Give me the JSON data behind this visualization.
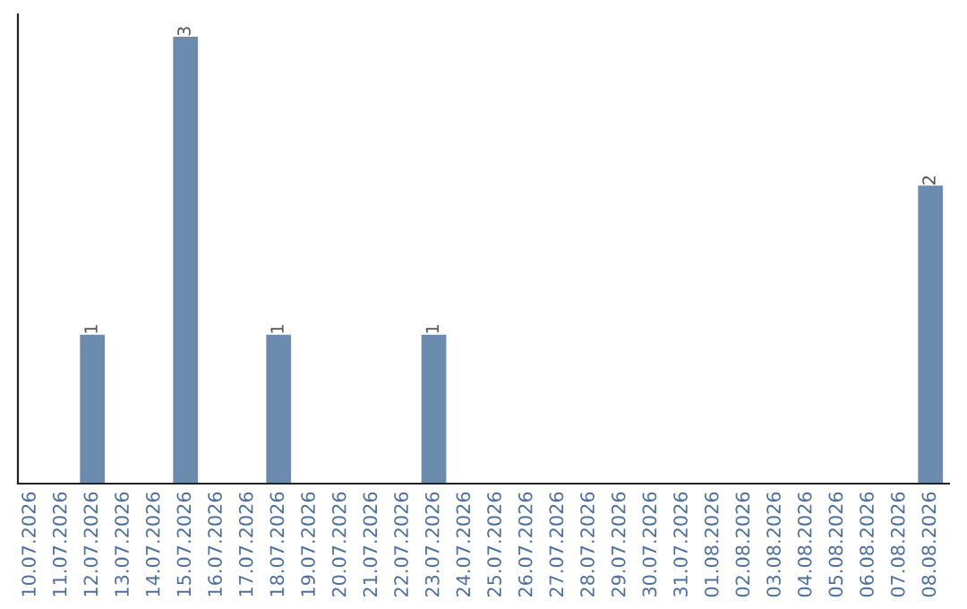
{
  "chart_data": {
    "type": "bar",
    "categories": [
      "10.07.2026",
      "11.07.2026",
      "12.07.2026",
      "13.07.2026",
      "14.07.2026",
      "15.07.2026",
      "16.07.2026",
      "17.07.2026",
      "18.07.2026",
      "19.07.2026",
      "20.07.2026",
      "21.07.2026",
      "22.07.2026",
      "23.07.2026",
      "24.07.2026",
      "25.07.2026",
      "26.07.2026",
      "27.07.2026",
      "28.07.2026",
      "29.07.2026",
      "30.07.2026",
      "31.07.2026",
      "01.08.2026",
      "02.08.2026",
      "03.08.2026",
      "04.08.2026",
      "05.08.2026",
      "06.08.2026",
      "07.08.2026",
      "08.08.2026"
    ],
    "values": [
      0,
      0,
      1,
      0,
      0,
      3,
      0,
      0,
      1,
      0,
      0,
      0,
      0,
      1,
      0,
      0,
      0,
      0,
      0,
      0,
      0,
      0,
      0,
      0,
      0,
      0,
      0,
      0,
      0,
      2
    ],
    "value_labels": [
      null,
      null,
      "1",
      null,
      null,
      "3",
      null,
      null,
      "1",
      null,
      null,
      null,
      null,
      "1",
      null,
      null,
      null,
      null,
      null,
      null,
      null,
      null,
      null,
      null,
      null,
      null,
      null,
      null,
      null,
      "2"
    ],
    "color": "#6b8cae",
    "ylim": [
      0,
      3.15
    ],
    "tick_labels": "x",
    "grid": false,
    "legend": false
  }
}
